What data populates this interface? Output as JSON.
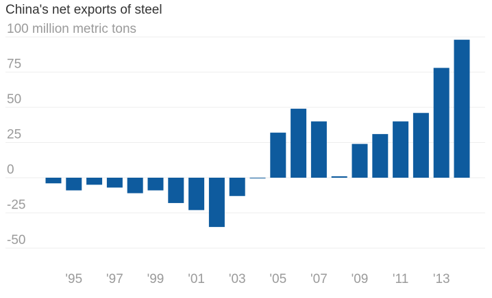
{
  "chart_data": {
    "type": "bar",
    "title": "China's net exports of steel",
    "ylabel": "100 million metric tons",
    "xlabel": "",
    "ylim": [
      -50,
      100
    ],
    "yticks": [
      100,
      75,
      50,
      25,
      0,
      -25,
      -50
    ],
    "ytick_labels": [
      "100 million metric tons",
      "75",
      "50",
      "25",
      "0",
      "-25",
      "-50"
    ],
    "categories": [
      "1994",
      "1995",
      "1996",
      "1997",
      "1998",
      "1999",
      "2000",
      "2001",
      "2002",
      "2003",
      "2004",
      "2005",
      "2006",
      "2007",
      "2008",
      "2009",
      "2010",
      "2011",
      "2012",
      "2013",
      "2014"
    ],
    "xtick_labels": [
      {
        "category": "1995",
        "label": "'95"
      },
      {
        "category": "1997",
        "label": "'97"
      },
      {
        "category": "1999",
        "label": "'99"
      },
      {
        "category": "2001",
        "label": "'01"
      },
      {
        "category": "2003",
        "label": "'03"
      },
      {
        "category": "2005",
        "label": "'05"
      },
      {
        "category": "2007",
        "label": "'07"
      },
      {
        "category": "2009",
        "label": "'09"
      },
      {
        "category": "2011",
        "label": "'11"
      },
      {
        "category": "2013",
        "label": "'13"
      }
    ],
    "values": [
      -4,
      -9,
      -5,
      -7,
      -11,
      -9,
      -18,
      -23,
      -35,
      -13,
      0,
      32,
      49,
      40,
      1,
      24,
      31,
      40,
      46,
      78,
      98
    ],
    "grid": true,
    "legend": "none",
    "colors": {
      "bar": "#0e5b9e",
      "grid": "#eeeeee",
      "text": "#9a9a9a",
      "title": "#333333"
    }
  }
}
